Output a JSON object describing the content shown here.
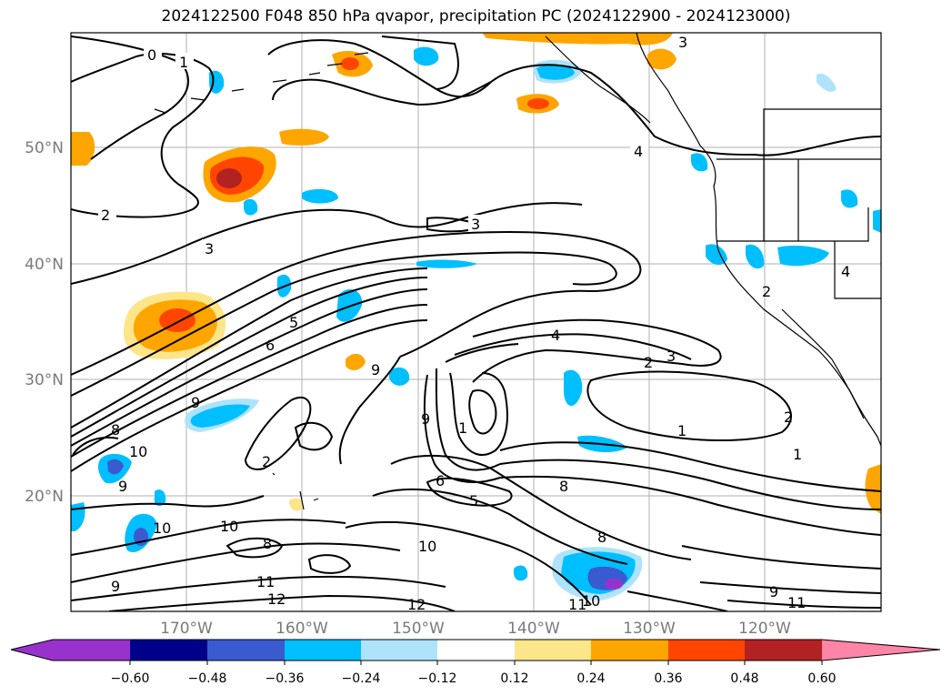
{
  "title": "2024122500 F048 850 hPa qvapor, precipitation PC (2024122900 - 2024123000)",
  "map": {
    "lat_labels": [
      "50°N",
      "40°N",
      "30°N",
      "20°N"
    ],
    "lon_labels": [
      "170°W",
      "160°W",
      "150°W",
      "140°W",
      "130°W",
      "120°W"
    ],
    "contour_labels": [
      "0",
      "1",
      "2",
      "3",
      "5",
      "6",
      "9",
      "8",
      "10",
      "9",
      "3",
      "4",
      "9",
      "2",
      "9",
      "1",
      "6",
      "5",
      "4",
      "2",
      "3",
      "1",
      "2",
      "1",
      "3",
      "8",
      "10",
      "10",
      "9",
      "8",
      "11",
      "12",
      "10",
      "12",
      "11",
      "10",
      "9",
      "11",
      "4",
      "2",
      "8"
    ],
    "contour_color": "#000000",
    "grid_color": "#b0b0b0"
  },
  "colorbar": {
    "colors": [
      "#9932cc",
      "#00008b",
      "#3a5bd0",
      "#00bfff",
      "#aee3fb",
      "#ffffff",
      "#fde68a",
      "#ffa500",
      "#ff4500",
      "#b22222",
      "#ff85a8"
    ],
    "tick_labels": [
      "−0.60",
      "−0.48",
      "−0.36",
      "−0.24",
      "−0.12",
      "0.12",
      "0.24",
      "0.36",
      "0.48",
      "0.60"
    ]
  }
}
